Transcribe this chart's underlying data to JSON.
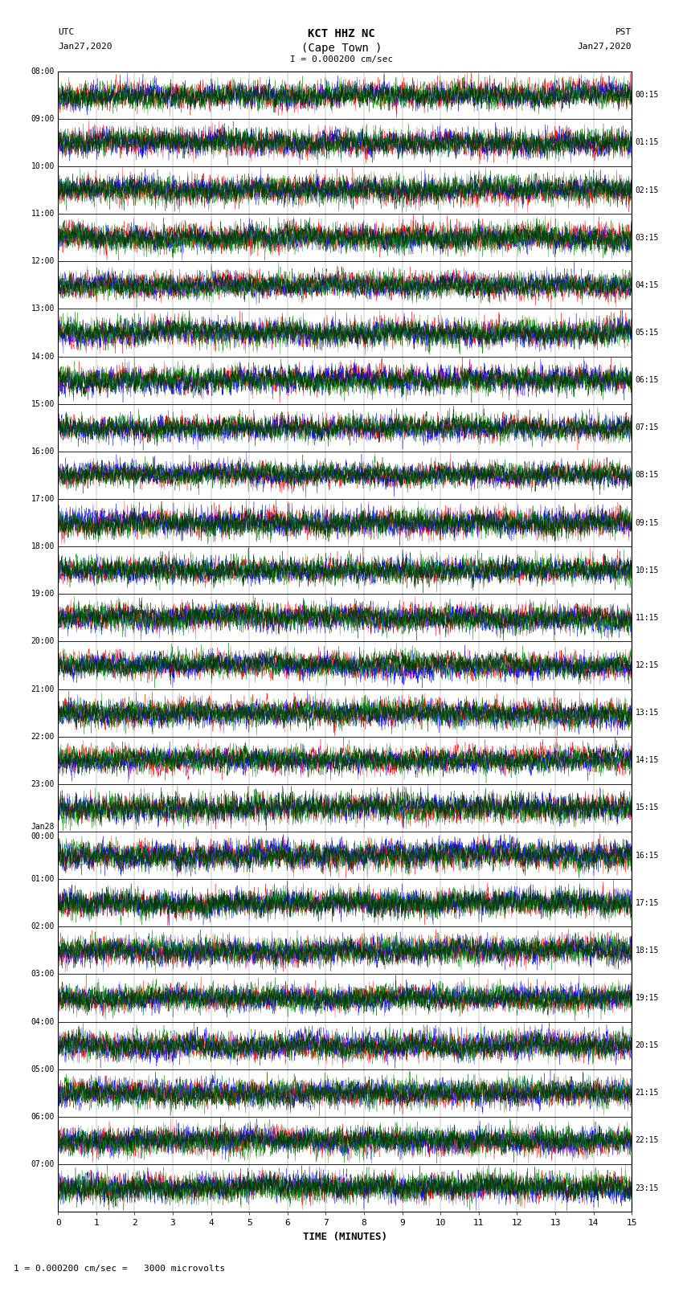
{
  "title_line1": "KCT HHZ NC",
  "title_line2": "(Cape Town )",
  "scale_text": "I = 0.000200 cm/sec",
  "utc_label": "UTC",
  "utc_date": "Jan27,2020",
  "pst_label": "PST",
  "pst_date": "Jan27,2020",
  "bottom_label": "TIME (MINUTES)",
  "bottom_note": "1 = 0.000200 cm/sec =   3000 microvolts",
  "left_times": [
    "08:00",
    "09:00",
    "10:00",
    "11:00",
    "12:00",
    "13:00",
    "14:00",
    "15:00",
    "16:00",
    "17:00",
    "18:00",
    "19:00",
    "20:00",
    "21:00",
    "22:00",
    "23:00",
    "Jan28\n00:00",
    "01:00",
    "02:00",
    "03:00",
    "04:00",
    "05:00",
    "06:00",
    "07:00"
  ],
  "right_times": [
    "00:15",
    "01:15",
    "02:15",
    "03:15",
    "04:15",
    "05:15",
    "06:15",
    "07:15",
    "08:15",
    "09:15",
    "10:15",
    "11:15",
    "12:15",
    "13:15",
    "14:15",
    "15:15",
    "16:15",
    "17:15",
    "18:15",
    "19:15",
    "20:15",
    "21:15",
    "22:15",
    "23:15"
  ],
  "num_rows": 24,
  "row_minutes": 15,
  "fig_width": 8.5,
  "fig_height": 16.13,
  "bg_color": "white",
  "plot_bg": "white",
  "colors": [
    "red",
    "blue",
    "green",
    "#003300"
  ],
  "x_ticks": [
    0,
    1,
    2,
    3,
    4,
    5,
    6,
    7,
    8,
    9,
    10,
    11,
    12,
    13,
    14,
    15
  ],
  "seed": 42
}
